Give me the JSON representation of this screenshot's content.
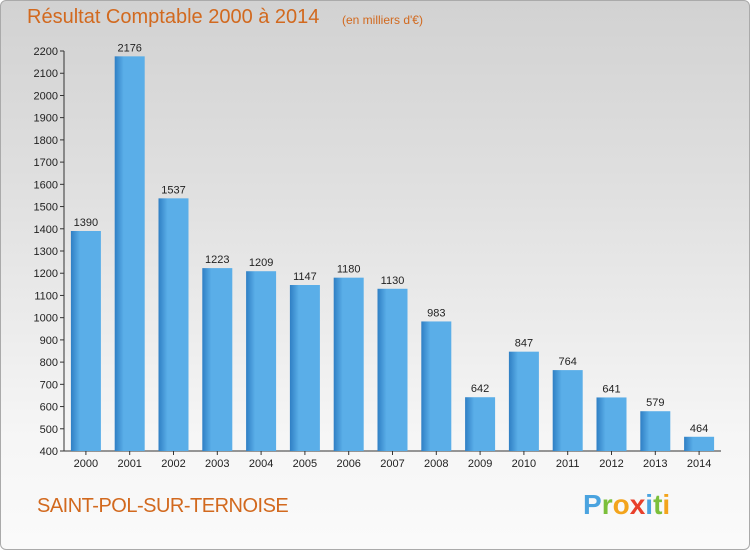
{
  "header": {
    "title": "Résultat Comptable 2000 à 2014",
    "subtitle": "(en milliers d'€)"
  },
  "footer": {
    "commune": "SAINT-POL-SUR-TERNOISE",
    "logo_letters": [
      "P",
      "r",
      "o",
      "x",
      "i",
      "t",
      "i"
    ],
    "logo_colors": [
      "#4aa3df",
      "#7bbf3a",
      "#f3a41c",
      "#e8402b",
      "#4aa3df",
      "#7bbf3a",
      "#f3a41c"
    ]
  },
  "chart_data": {
    "type": "bar",
    "title": "Résultat Comptable 2000 à 2014",
    "subtitle": "(en milliers d'€)",
    "xlabel": "",
    "ylabel": "",
    "categories": [
      "2000",
      "2001",
      "2002",
      "2003",
      "2004",
      "2005",
      "2006",
      "2007",
      "2008",
      "2009",
      "2010",
      "2011",
      "2012",
      "2013",
      "2014"
    ],
    "values": [
      1390,
      2176,
      1537,
      1223,
      1209,
      1147,
      1180,
      1130,
      983,
      642,
      847,
      764,
      641,
      579,
      464
    ],
    "ylim": [
      400,
      2200
    ],
    "yticks": [
      400,
      500,
      600,
      700,
      800,
      900,
      1000,
      1100,
      1200,
      1300,
      1400,
      1500,
      1600,
      1700,
      1800,
      1900,
      2000,
      2100,
      2200
    ],
    "grid": false,
    "bar_color_light": "#5aaee8",
    "bar_color_dark": "#2f7fc4"
  }
}
